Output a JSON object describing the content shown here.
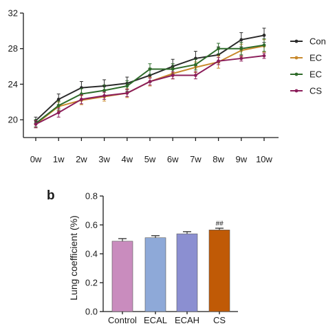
{
  "chart_data": [
    {
      "type": "line",
      "title": "",
      "xlabel": "",
      "ylabel": "",
      "categories": [
        "0w",
        "1w",
        "2w",
        "3w",
        "4w",
        "5w",
        "6w",
        "7w",
        "8w",
        "9w",
        "10w"
      ],
      "ylim": [
        18,
        32
      ],
      "yticks": [
        20,
        24,
        28,
        32
      ],
      "legend_position": "right",
      "series": [
        {
          "name": "Con",
          "color": "#2b2b2b",
          "values": [
            19.9,
            22.3,
            23.6,
            23.8,
            24.1,
            25.0,
            26.0,
            26.9,
            27.3,
            29.0,
            29.5
          ],
          "errors": [
            0.4,
            0.6,
            0.7,
            0.7,
            0.7,
            0.8,
            0.8,
            0.8,
            0.9,
            0.8,
            0.8
          ]
        },
        {
          "name": "EC",
          "color": "#c8892c",
          "values": [
            19.5,
            21.5,
            22.2,
            22.6,
            23.0,
            24.3,
            25.2,
            25.9,
            26.5,
            27.8,
            28.3
          ],
          "errors": [
            0.4,
            0.5,
            0.5,
            0.5,
            0.5,
            0.5,
            0.6,
            0.6,
            0.7,
            0.7,
            0.7
          ]
        },
        {
          "name": "EC",
          "color": "#2e6b2a",
          "values": [
            19.6,
            21.6,
            22.9,
            23.3,
            23.8,
            25.7,
            25.7,
            26.2,
            28.0,
            28.0,
            28.4
          ],
          "errors": [
            0.4,
            0.5,
            0.6,
            0.6,
            0.6,
            0.6,
            0.6,
            0.6,
            0.6,
            0.7,
            0.7
          ]
        },
        {
          "name": "CS",
          "color": "#8b1d5a",
          "values": [
            19.5,
            20.8,
            22.3,
            22.7,
            23.0,
            24.3,
            25.0,
            25.0,
            26.6,
            26.9,
            27.2
          ],
          "errors": [
            0.4,
            0.5,
            0.5,
            0.4,
            0.4,
            0.4,
            0.4,
            0.4,
            0.4,
            0.3,
            0.3
          ]
        }
      ]
    },
    {
      "type": "bar",
      "panel_label": "b",
      "title": "",
      "xlabel": "",
      "ylabel": "Lung coefficient (%)",
      "categories": [
        "Control",
        "ECAL",
        "ECAH",
        "CS"
      ],
      "values": [
        0.487,
        0.511,
        0.538,
        0.565
      ],
      "errors": [
        0.018,
        0.014,
        0.015,
        0.012
      ],
      "colors": [
        "#c98cbe",
        "#8ea9d8",
        "#8b8fd1",
        "#c05a06"
      ],
      "annotations": [
        "",
        "",
        "",
        "##"
      ],
      "ylim": [
        0,
        0.8
      ],
      "yticks": [
        0.0,
        0.2,
        0.4,
        0.6,
        0.8
      ],
      "ytick_labels": [
        "0.0",
        "0.2",
        "0.4",
        "0.6",
        "0.8"
      ]
    }
  ]
}
